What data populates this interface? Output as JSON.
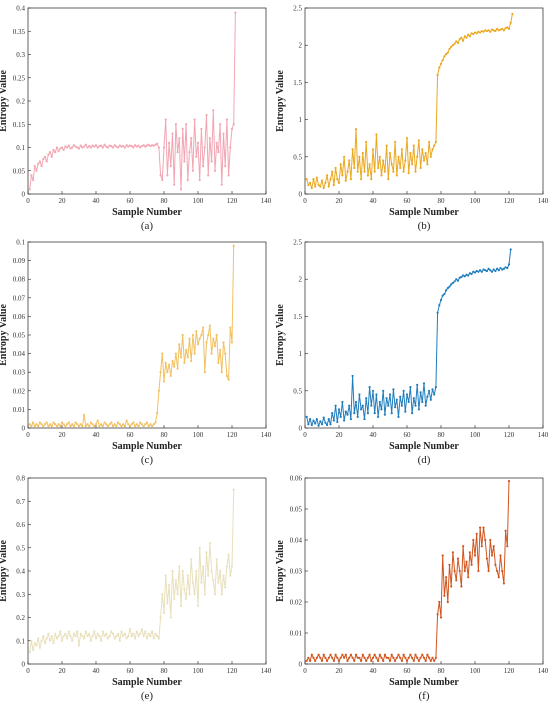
{
  "figure": {
    "captions": [
      "(a)",
      "(b)",
      "(c)",
      "(d)",
      "(e)",
      "(f)"
    ]
  },
  "chart_data": [
    {
      "type": "line",
      "caption": "(a)",
      "color": "#f2a5b2",
      "xlabel": "Sample Number",
      "ylabel": "Entropy Value",
      "xlim": [
        0,
        140
      ],
      "ylim": [
        0,
        0.4
      ],
      "xticks": [
        0,
        20,
        40,
        60,
        80,
        100,
        120,
        140
      ],
      "yticks": [
        0,
        0.05,
        0.1,
        0.15,
        0.2,
        0.25,
        0.3,
        0.35,
        0.4
      ],
      "x_start": 1,
      "values": [
        0.01,
        0.04,
        0.03,
        0.06,
        0.05,
        0.065,
        0.07,
        0.06,
        0.075,
        0.08,
        0.07,
        0.085,
        0.09,
        0.08,
        0.095,
        0.09,
        0.1,
        0.092,
        0.098,
        0.1,
        0.095,
        0.102,
        0.1,
        0.104,
        0.098,
        0.1,
        0.105,
        0.102,
        0.1,
        0.098,
        0.104,
        0.1,
        0.102,
        0.106,
        0.1,
        0.103,
        0.1,
        0.104,
        0.102,
        0.105,
        0.1,
        0.103,
        0.104,
        0.1,
        0.106,
        0.102,
        0.1,
        0.104,
        0.103,
        0.1,
        0.105,
        0.102,
        0.1,
        0.104,
        0.102,
        0.103,
        0.1,
        0.105,
        0.102,
        0.104,
        0.103,
        0.1,
        0.105,
        0.102,
        0.104,
        0.1,
        0.103,
        0.105,
        0.102,
        0.104,
        0.106,
        0.103,
        0.105,
        0.104,
        0.106,
        0.108,
        0.1,
        0.04,
        0.03,
        0.1,
        0.16,
        0.04,
        0.11,
        0.06,
        0.13,
        0.02,
        0.15,
        0.09,
        0.12,
        0.01,
        0.14,
        0.07,
        0.15,
        0.03,
        0.09,
        0.12,
        0.05,
        0.16,
        0.08,
        0.11,
        0.03,
        0.14,
        0.06,
        0.1,
        0.17,
        0.04,
        0.12,
        0.07,
        0.18,
        0.05,
        0.11,
        0.09,
        0.15,
        0.02,
        0.13,
        0.06,
        0.16,
        0.04,
        0.1,
        0.14,
        0.15,
        0.39
      ]
    },
    {
      "type": "line",
      "caption": "(b)",
      "color": "#eaa820",
      "xlabel": "Sample Number",
      "ylabel": "Entropy Value",
      "xlim": [
        0,
        140
      ],
      "ylim": [
        0,
        2.5
      ],
      "xticks": [
        0,
        20,
        40,
        60,
        80,
        100,
        120,
        140
      ],
      "yticks": [
        0,
        0.5,
        1,
        1.5,
        2,
        2.5
      ],
      "x_start": 1,
      "values": [
        0.2,
        0.12,
        0.15,
        0.08,
        0.2,
        0.1,
        0.22,
        0.12,
        0.1,
        0.18,
        0.08,
        0.15,
        0.25,
        0.1,
        0.2,
        0.3,
        0.12,
        0.35,
        0.2,
        0.15,
        0.4,
        0.25,
        0.5,
        0.18,
        0.3,
        0.45,
        0.2,
        0.6,
        0.35,
        0.87,
        0.3,
        0.5,
        0.2,
        0.55,
        0.3,
        0.7,
        0.25,
        0.4,
        0.2,
        0.6,
        0.3,
        0.8,
        0.35,
        0.5,
        0.25,
        0.45,
        0.3,
        0.65,
        0.2,
        0.55,
        0.4,
        0.3,
        0.7,
        0.25,
        0.5,
        0.35,
        0.6,
        0.3,
        0.45,
        0.75,
        0.28,
        0.55,
        0.4,
        0.65,
        0.3,
        0.5,
        0.72,
        0.35,
        0.6,
        0.45,
        0.55,
        0.4,
        0.7,
        0.5,
        0.6,
        0.65,
        0.7,
        1.6,
        1.7,
        1.75,
        1.8,
        1.85,
        1.88,
        1.9,
        1.95,
        1.98,
        2.0,
        2.02,
        2.05,
        2.03,
        2.08,
        2.1,
        2.06,
        2.12,
        2.1,
        2.14,
        2.12,
        2.16,
        2.15,
        2.17,
        2.16,
        2.18,
        2.17,
        2.19,
        2.18,
        2.2,
        2.19,
        2.2,
        2.18,
        2.21,
        2.2,
        2.19,
        2.22,
        2.2,
        2.21,
        2.22,
        2.2,
        2.23,
        2.24,
        2.22,
        2.3,
        2.42
      ]
    },
    {
      "type": "line",
      "caption": "(c)",
      "color": "#f2c060",
      "xlabel": "Sample Number",
      "ylabel": "Entropy Value",
      "xlim": [
        0,
        140
      ],
      "ylim": [
        0,
        0.1
      ],
      "xticks": [
        0,
        20,
        40,
        60,
        80,
        100,
        120,
        140
      ],
      "yticks": [
        0,
        0.01,
        0.02,
        0.03,
        0.04,
        0.05,
        0.06,
        0.07,
        0.08,
        0.09,
        0.1
      ],
      "x_start": 1,
      "values": [
        0.002,
        0.001,
        0.003,
        0.001,
        0.002,
        0.001,
        0.003,
        0.002,
        0.001,
        0.002,
        0.003,
        0.001,
        0.002,
        0.001,
        0.003,
        0.002,
        0.001,
        0.002,
        0.001,
        0.003,
        0.002,
        0.001,
        0.002,
        0.003,
        0.001,
        0.002,
        0.001,
        0.003,
        0.002,
        0.001,
        0.002,
        0.001,
        0.007,
        0.001,
        0.002,
        0.001,
        0.003,
        0.002,
        0.001,
        0.002,
        0.004,
        0.001,
        0.002,
        0.001,
        0.003,
        0.002,
        0.001,
        0.002,
        0.003,
        0.001,
        0.002,
        0.001,
        0.003,
        0.002,
        0.001,
        0.002,
        0.001,
        0.004,
        0.002,
        0.001,
        0.002,
        0.003,
        0.001,
        0.002,
        0.001,
        0.003,
        0.002,
        0.001,
        0.002,
        0.003,
        0.001,
        0.002,
        0.001,
        0.002,
        0.003,
        0.008,
        0.02,
        0.03,
        0.04,
        0.025,
        0.035,
        0.03,
        0.034,
        0.028,
        0.036,
        0.033,
        0.04,
        0.032,
        0.045,
        0.038,
        0.05,
        0.035,
        0.042,
        0.038,
        0.048,
        0.036,
        0.05,
        0.04,
        0.052,
        0.045,
        0.048,
        0.05,
        0.054,
        0.03,
        0.046,
        0.05,
        0.055,
        0.04,
        0.048,
        0.044,
        0.05,
        0.035,
        0.042,
        0.03,
        0.046,
        0.04,
        0.028,
        0.026,
        0.054,
        0.046,
        0.098
      ]
    },
    {
      "type": "line",
      "caption": "(d)",
      "color": "#1f7dbd",
      "xlabel": "Sample Number",
      "ylabel": "Entropy Value",
      "xlim": [
        0,
        140
      ],
      "ylim": [
        0,
        2.5
      ],
      "xticks": [
        0,
        20,
        40,
        60,
        80,
        100,
        120,
        140
      ],
      "yticks": [
        0,
        0.5,
        1,
        1.5,
        2,
        2.5
      ],
      "x_start": 1,
      "values": [
        0.15,
        0.05,
        0.12,
        0.04,
        0.1,
        0.06,
        0.12,
        0.03,
        0.09,
        0.05,
        0.14,
        0.07,
        0.04,
        0.12,
        0.05,
        0.2,
        0.1,
        0.3,
        0.08,
        0.25,
        0.15,
        0.35,
        0.1,
        0.22,
        0.18,
        0.3,
        0.12,
        0.7,
        0.2,
        0.35,
        0.15,
        0.45,
        0.25,
        0.3,
        0.12,
        0.4,
        0.2,
        0.55,
        0.3,
        0.5,
        0.2,
        0.45,
        0.15,
        0.35,
        0.25,
        0.5,
        0.18,
        0.4,
        0.3,
        0.45,
        0.2,
        0.52,
        0.28,
        0.38,
        0.15,
        0.42,
        0.3,
        0.5,
        0.22,
        0.45,
        0.35,
        0.55,
        0.2,
        0.4,
        0.3,
        0.58,
        0.25,
        0.48,
        0.35,
        0.6,
        0.3,
        0.42,
        0.5,
        0.38,
        0.52,
        0.45,
        0.55,
        1.55,
        1.65,
        1.72,
        1.78,
        1.8,
        1.85,
        1.88,
        1.9,
        1.93,
        1.95,
        1.97,
        2.0,
        1.98,
        2.02,
        2.03,
        2.05,
        2.04,
        2.06,
        2.05,
        2.08,
        2.07,
        2.1,
        2.09,
        2.11,
        2.1,
        2.12,
        2.1,
        2.13,
        2.12,
        2.11,
        2.14,
        2.12,
        2.1,
        2.13,
        2.11,
        2.14,
        2.12,
        2.15,
        2.13,
        2.14,
        2.16,
        2.15,
        2.2,
        2.4
      ]
    },
    {
      "type": "line",
      "caption": "(e)",
      "color": "#e8e0bc",
      "xlabel": "Sample Number",
      "ylabel": "Entropy Value",
      "xlim": [
        0,
        140
      ],
      "ylim": [
        0,
        0.8
      ],
      "xticks": [
        0,
        20,
        40,
        60,
        80,
        100,
        120,
        140
      ],
      "yticks": [
        0,
        0.1,
        0.2,
        0.3,
        0.4,
        0.5,
        0.6,
        0.7,
        0.8
      ],
      "x_start": 1,
      "values": [
        0.05,
        0.1,
        0.06,
        0.09,
        0.08,
        0.11,
        0.07,
        0.1,
        0.12,
        0.09,
        0.11,
        0.13,
        0.1,
        0.12,
        0.09,
        0.13,
        0.11,
        0.12,
        0.14,
        0.1,
        0.12,
        0.13,
        0.11,
        0.14,
        0.12,
        0.1,
        0.13,
        0.12,
        0.14,
        0.08,
        0.13,
        0.12,
        0.11,
        0.14,
        0.12,
        0.13,
        0.1,
        0.12,
        0.14,
        0.11,
        0.13,
        0.12,
        0.1,
        0.14,
        0.12,
        0.13,
        0.11,
        0.12,
        0.14,
        0.13,
        0.11,
        0.12,
        0.13,
        0.1,
        0.14,
        0.12,
        0.13,
        0.11,
        0.12,
        0.15,
        0.12,
        0.13,
        0.11,
        0.14,
        0.12,
        0.13,
        0.15,
        0.12,
        0.14,
        0.11,
        0.13,
        0.12,
        0.14,
        0.11,
        0.13,
        0.12,
        0.11,
        0.2,
        0.3,
        0.22,
        0.38,
        0.26,
        0.34,
        0.2,
        0.4,
        0.28,
        0.36,
        0.3,
        0.42,
        0.25,
        0.4,
        0.32,
        0.28,
        0.38,
        0.3,
        0.45,
        0.35,
        0.3,
        0.4,
        0.25,
        0.5,
        0.35,
        0.42,
        0.3,
        0.48,
        0.38,
        0.52,
        0.4,
        0.36,
        0.3,
        0.45,
        0.35,
        0.4,
        0.3,
        0.38,
        0.33,
        0.42,
        0.47,
        0.38,
        0.42,
        0.75
      ]
    },
    {
      "type": "line",
      "caption": "(f)",
      "color": "#d0551f",
      "xlabel": "Sample Number",
      "ylabel": "Entropy Value",
      "xlim": [
        0,
        140
      ],
      "ylim": [
        0,
        0.06
      ],
      "xticks": [
        0,
        20,
        40,
        60,
        80,
        100,
        120,
        140
      ],
      "yticks": [
        0,
        0.01,
        0.02,
        0.03,
        0.04,
        0.05,
        0.06
      ],
      "x_start": 1,
      "values": [
        0.001,
        0.002,
        0.001,
        0.003,
        0.002,
        0.001,
        0.002,
        0.003,
        0.002,
        0.001,
        0.003,
        0.002,
        0.001,
        0.002,
        0.003,
        0.002,
        0.001,
        0.003,
        0.002,
        0.001,
        0.002,
        0.003,
        0.002,
        0.003,
        0.001,
        0.002,
        0.003,
        0.002,
        0.001,
        0.003,
        0.002,
        0.002,
        0.001,
        0.003,
        0.002,
        0.001,
        0.002,
        0.003,
        0.001,
        0.002,
        0.003,
        0.002,
        0.001,
        0.003,
        0.002,
        0.001,
        0.003,
        0.002,
        0.002,
        0.001,
        0.003,
        0.002,
        0.001,
        0.002,
        0.003,
        0.002,
        0.001,
        0.003,
        0.002,
        0.001,
        0.002,
        0.003,
        0.002,
        0.001,
        0.003,
        0.002,
        0.001,
        0.002,
        0.003,
        0.002,
        0.001,
        0.003,
        0.002,
        0.001,
        0.002,
        0.001,
        0.002,
        0.016,
        0.02,
        0.015,
        0.035,
        0.022,
        0.028,
        0.02,
        0.032,
        0.025,
        0.036,
        0.03,
        0.027,
        0.034,
        0.03,
        0.025,
        0.038,
        0.03,
        0.033,
        0.028,
        0.036,
        0.032,
        0.04,
        0.035,
        0.042,
        0.03,
        0.044,
        0.038,
        0.044,
        0.04,
        0.034,
        0.03,
        0.04,
        0.035,
        0.038,
        0.032,
        0.03,
        0.028,
        0.035,
        0.03,
        0.026,
        0.043,
        0.038,
        0.059
      ]
    }
  ]
}
